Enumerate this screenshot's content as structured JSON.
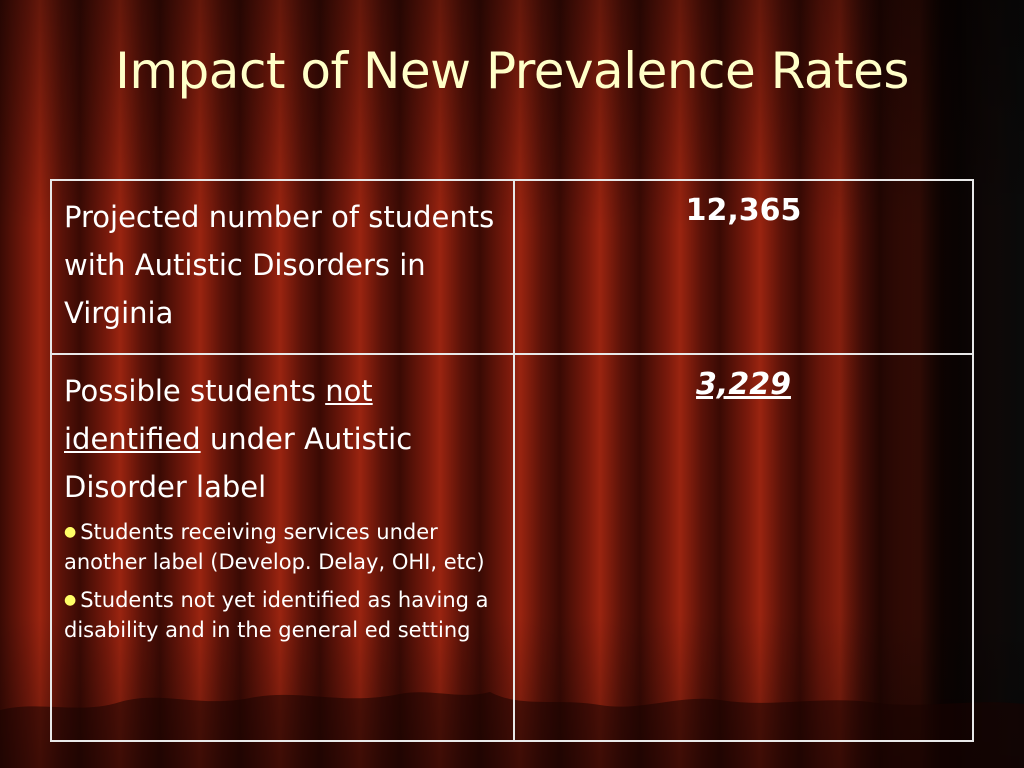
{
  "title": "Impact of New Prevalence Rates",
  "table": {
    "rows": [
      {
        "label": "Projected number of students with Autistic Disorders in Virginia",
        "value": "12,365"
      },
      {
        "label": {
          "before": "Possible students ",
          "underlined": "not identified",
          "after": " under Autistic Disorder label"
        },
        "bullets": [
          "Students receiving services under another label (Develop. Delay, OHI, etc)",
          "Students not yet identified as having a disability and in the general ed setting"
        ],
        "value": "3,229"
      }
    ]
  }
}
